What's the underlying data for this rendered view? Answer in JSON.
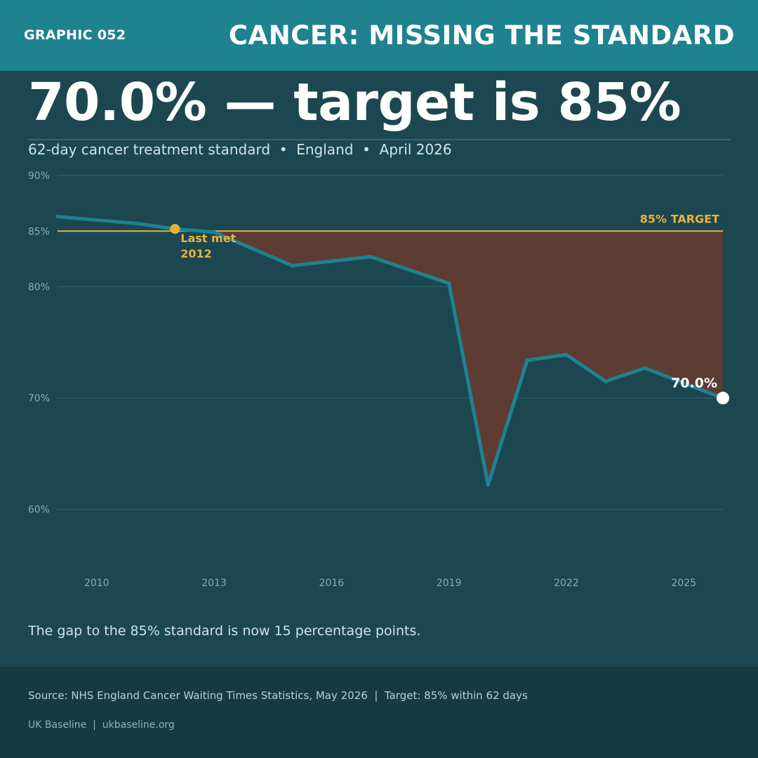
{
  "header": {
    "graphic_no": "GRAPHIC 052",
    "title": "CANCER: MISSING THE STANDARD"
  },
  "headline": "70.0% — target is 85%",
  "subtitle": "62-day cancer treatment standard  •  England  •  April 2026",
  "note": "The gap to the 85% standard is now 15 percentage points.",
  "footer": {
    "source": "Source: NHS England Cancer Waiting Times Statistics, May 2026  |  Target: 85% within 62 days",
    "brand": "UK Baseline  |  ukbaseline.org"
  },
  "colors": {
    "line": "#1f828f",
    "target": "#e8b23a",
    "gap_fill": "#5c3c33",
    "grid": "#2b6770",
    "end_marker": "#ffffff"
  },
  "chart_data": {
    "type": "line",
    "x": [
      2009,
      2010,
      2011,
      2012,
      2013,
      2014,
      2015,
      2016,
      2017,
      2018,
      2019,
      2020,
      2021,
      2022,
      2023,
      2024,
      2026
    ],
    "series": [
      {
        "values": [
          86.3,
          86.0,
          85.7,
          85.2,
          84.9,
          83.4,
          81.9,
          82.3,
          82.7,
          81.5,
          80.3,
          62.2,
          73.4,
          73.9,
          71.5,
          72.7,
          70.0
        ]
      }
    ],
    "target": 85,
    "target_label": "85% TARGET",
    "annotation": {
      "x": 2012,
      "y": 85.2,
      "line1": "Last met",
      "line2": "2012"
    },
    "end_label": "70.0%",
    "xlim": [
      2009,
      2026
    ],
    "ylim": [
      55,
      90
    ],
    "yticks": [
      {
        "value": 90,
        "label": "90%"
      },
      {
        "value": 85,
        "label": "85%"
      },
      {
        "value": 80,
        "label": "80%"
      },
      {
        "value": 70,
        "label": "70%"
      },
      {
        "value": 60,
        "label": "60%"
      }
    ],
    "xticks": [
      {
        "value": 2010,
        "label": "2010"
      },
      {
        "value": 2013,
        "label": "2013"
      },
      {
        "value": 2016,
        "label": "2016"
      },
      {
        "value": 2019,
        "label": "2019"
      },
      {
        "value": 2022,
        "label": "2022"
      },
      {
        "value": 2025,
        "label": "2025"
      }
    ],
    "grid": true
  }
}
